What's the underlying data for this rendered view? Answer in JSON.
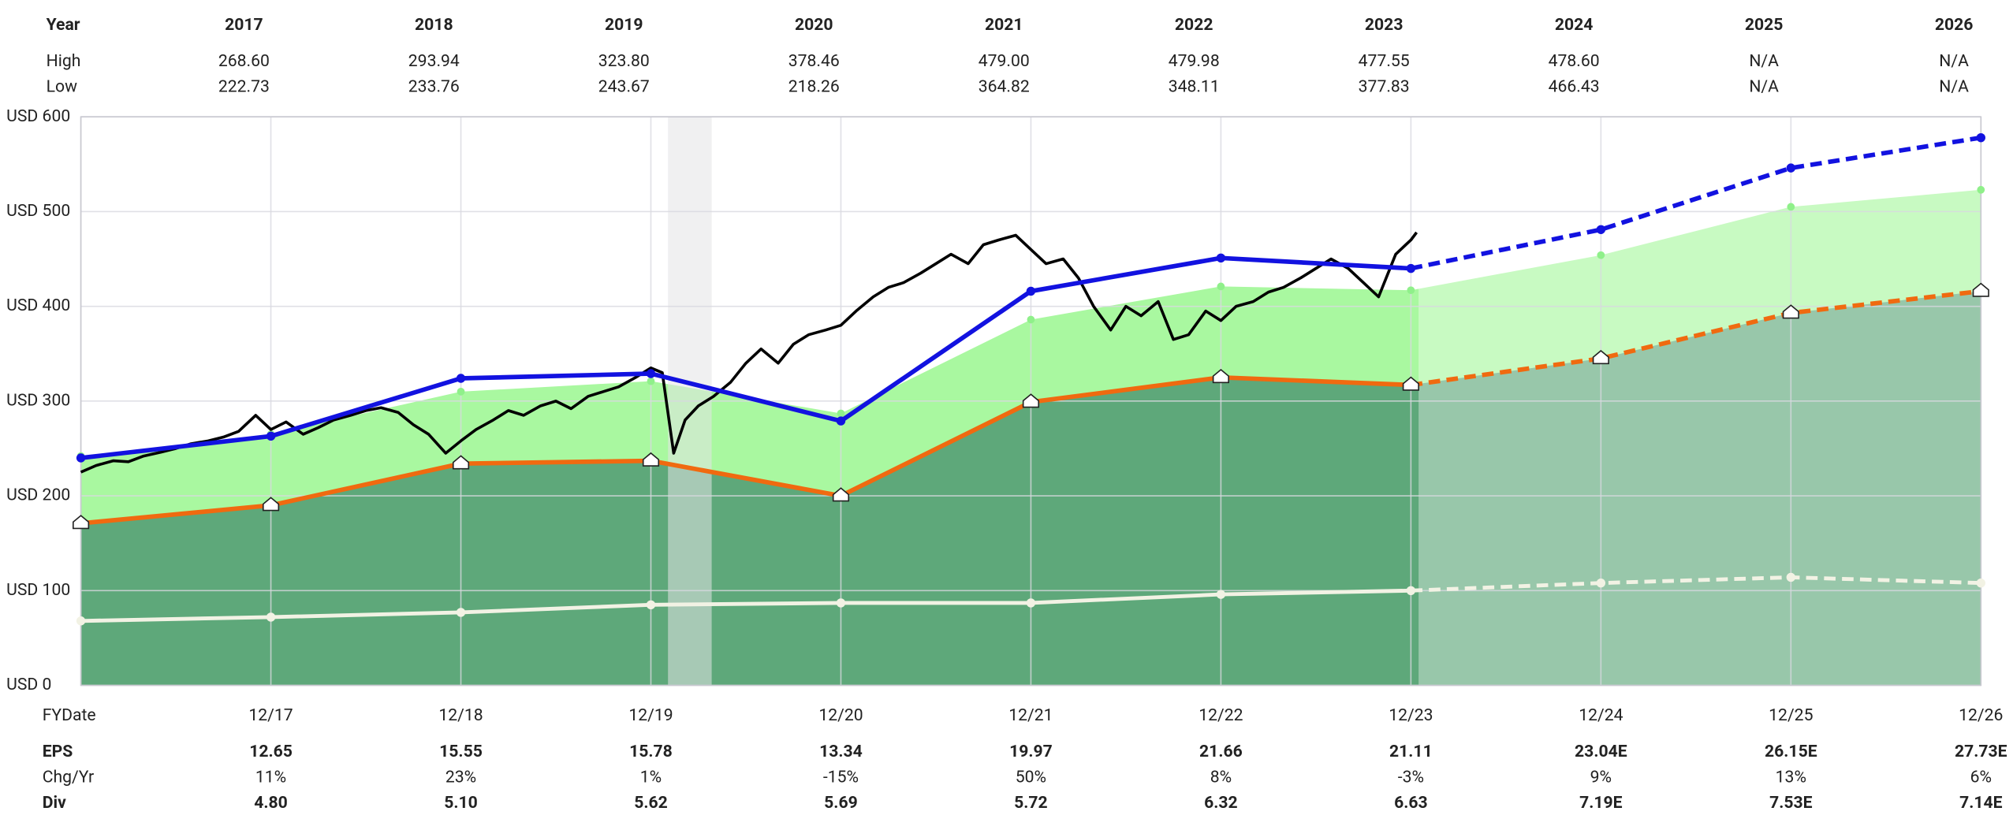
{
  "chart_data": {
    "type": "line",
    "top_table": {
      "header": "Year",
      "years": [
        "2017",
        "2018",
        "2019",
        "2020",
        "2021",
        "2022",
        "2023",
        "2024",
        "2025",
        "2026"
      ],
      "rows": [
        {
          "label": "High",
          "values": [
            "268.60",
            "293.94",
            "323.80",
            "378.46",
            "479.00",
            "479.98",
            "477.55",
            "478.60",
            "N/A",
            "N/A"
          ]
        },
        {
          "label": "Low",
          "values": [
            "222.73",
            "233.76",
            "243.67",
            "218.26",
            "364.82",
            "348.11",
            "377.83",
            "466.43",
            "N/A",
            "N/A"
          ]
        }
      ]
    },
    "x_label": "FYDate",
    "categories": [
      null,
      "12/17",
      "12/18",
      "12/19",
      "12/20",
      "12/21",
      "12/22",
      "12/23",
      "12/24",
      "12/25",
      "12/26"
    ],
    "ylim": [
      0,
      600
    ],
    "yticks": [
      {
        "value": 0,
        "label": "USD 0"
      },
      {
        "value": 100,
        "label": "USD 100"
      },
      {
        "value": 200,
        "label": "USD 200"
      },
      {
        "value": 300,
        "label": "USD 300"
      },
      {
        "value": 400,
        "label": "USD 400"
      },
      {
        "value": 500,
        "label": "USD 500"
      },
      {
        "value": 600,
        "label": "USD 600"
      }
    ],
    "grid": true,
    "recession": {
      "x": [
        3.09,
        3.32
      ],
      "color": "#e3e3e6"
    },
    "series": [
      {
        "role": "upper-area",
        "color": "#a9f8a0",
        "values": [
          242,
          265,
          310,
          321,
          287,
          386,
          421,
          417,
          454,
          505,
          523
        ]
      },
      {
        "role": "fair-value",
        "color": "#f06a10",
        "values": [
          171,
          190,
          234,
          237,
          200,
          299,
          325,
          317,
          345,
          393,
          416
        ]
      },
      {
        "role": "normal-pe",
        "color": "#1212e0",
        "values": [
          240,
          263,
          324,
          329,
          279,
          416,
          451,
          440,
          481,
          546,
          578
        ]
      },
      {
        "role": "dividend",
        "color": "#f2f2e4",
        "values": [
          68,
          72,
          77,
          85,
          87,
          87,
          96,
          100,
          108,
          114,
          108
        ]
      }
    ],
    "area_color": "#5ea87a",
    "price": {
      "color": "#000000",
      "x": [
        0,
        0.08,
        0.17,
        0.25,
        0.33,
        0.42,
        0.5,
        0.58,
        0.67,
        0.75,
        0.83,
        0.92,
        1,
        1.08,
        1.17,
        1.25,
        1.33,
        1.42,
        1.5,
        1.58,
        1.67,
        1.75,
        1.83,
        1.92,
        2,
        2.08,
        2.17,
        2.25,
        2.33,
        2.42,
        2.5,
        2.58,
        2.67,
        2.75,
        2.83,
        2.92,
        3,
        3.06,
        3.12,
        3.18,
        3.25,
        3.33,
        3.42,
        3.5,
        3.58,
        3.67,
        3.75,
        3.83,
        3.92,
        4,
        4.08,
        4.17,
        4.25,
        4.33,
        4.42,
        4.5,
        4.58,
        4.67,
        4.75,
        4.83,
        4.92,
        5,
        5.08,
        5.17,
        5.25,
        5.33,
        5.42,
        5.5,
        5.58,
        5.67,
        5.75,
        5.83,
        5.92,
        6,
        6.08,
        6.17,
        6.25,
        6.33,
        6.42,
        6.5,
        6.58,
        6.67,
        6.75,
        6.83,
        6.92,
        7,
        7.03
      ],
      "values": [
        225,
        232,
        237,
        236,
        242,
        246,
        250,
        255,
        258,
        262,
        268,
        285,
        270,
        278,
        265,
        272,
        280,
        285,
        290,
        293,
        288,
        275,
        265,
        245,
        258,
        270,
        280,
        290,
        285,
        295,
        300,
        292,
        305,
        310,
        315,
        325,
        335,
        330,
        245,
        280,
        295,
        305,
        320,
        340,
        355,
        340,
        360,
        370,
        375,
        380,
        395,
        410,
        420,
        425,
        435,
        445,
        455,
        445,
        465,
        470,
        475,
        460,
        445,
        450,
        430,
        400,
        375,
        400,
        390,
        405,
        365,
        370,
        395,
        385,
        400,
        405,
        415,
        420,
        430,
        440,
        450,
        440,
        425,
        410,
        455,
        470,
        478
      ]
    },
    "bottom_table": [
      {
        "label": "EPS",
        "bold": true,
        "values": [
          "12.65",
          "15.55",
          "15.78",
          "13.34",
          "19.97",
          "21.66",
          "21.11",
          "23.04E",
          "26.15E",
          "27.73E"
        ]
      },
      {
        "label": "Chg/Yr",
        "bold": false,
        "values": [
          "11%",
          "23%",
          "1%",
          "-15%",
          "50%",
          "8%",
          "-3%",
          "9%",
          "13%",
          "6%"
        ]
      },
      {
        "label": "Div",
        "bold": true,
        "values": [
          "4.80",
          "5.10",
          "5.62",
          "5.69",
          "5.72",
          "6.32",
          "6.63",
          "7.19E",
          "7.53E",
          "7.14E"
        ]
      }
    ]
  }
}
